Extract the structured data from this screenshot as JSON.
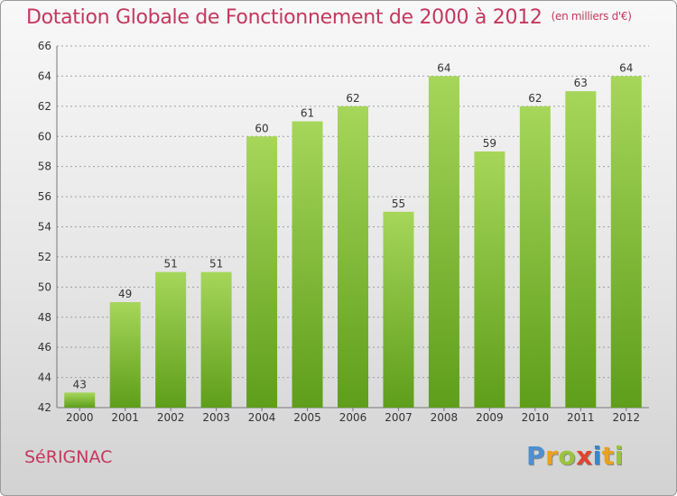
{
  "title": "Dotation Globale de Fonctionnement de 2000 à 2012",
  "unit_note": "(en milliers d'€)",
  "footer": {
    "city": "SéRIGNAC",
    "logo_letters": [
      "P",
      "r",
      "o",
      "x",
      "i",
      "t",
      "i"
    ],
    "logo_colors": [
      "#4d8fd0",
      "#e8a21c",
      "#9ac43c",
      "#e0452d",
      "#3a86c8",
      "#e8a21c",
      "#9ac43c"
    ]
  },
  "colors": {
    "title": "#c4375f",
    "bar_light": "#a6d65a",
    "bar_dark": "#5e9e1a",
    "grid": "#9aa0a6"
  },
  "chart_data": {
    "type": "bar",
    "categories": [
      "2000",
      "2001",
      "2002",
      "2003",
      "2004",
      "2005",
      "2006",
      "2007",
      "2008",
      "2009",
      "2010",
      "2011",
      "2012"
    ],
    "values": [
      43,
      49,
      51,
      51,
      60,
      61,
      62,
      55,
      64,
      59,
      62,
      63,
      64
    ],
    "ylim": [
      42,
      66
    ],
    "yticks": [
      42,
      44,
      46,
      48,
      50,
      52,
      54,
      56,
      58,
      60,
      62,
      64,
      66
    ],
    "grid": true,
    "show_value_labels": true
  }
}
